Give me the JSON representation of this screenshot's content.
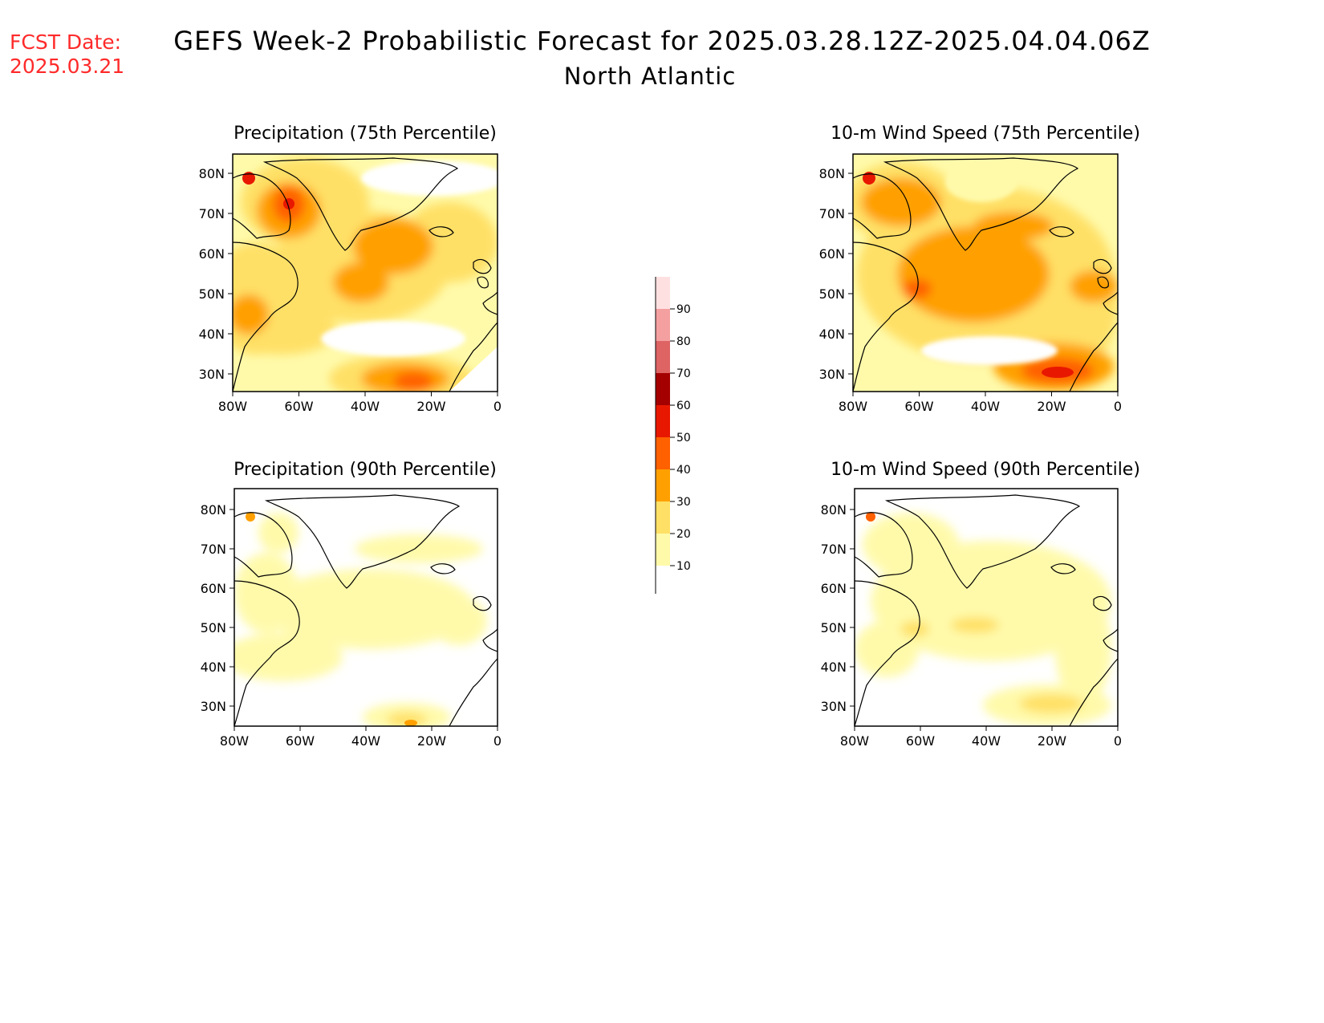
{
  "header": {
    "fcst_label": "FCST Date:",
    "fcst_date": "2025.03.21",
    "title": "GEFS Week-2 Probabilistic Forecast for 2025.03.28.12Z-2025.04.04.06Z",
    "subtitle": "North Atlantic"
  },
  "maps": {
    "lat_ticks": [
      "80N",
      "70N",
      "60N",
      "50N",
      "40N",
      "30N"
    ],
    "lon_ticks": [
      "80W",
      "60W",
      "40W",
      "20W",
      "0"
    ],
    "panels": [
      {
        "title": "Precipitation (75th Percentile)"
      },
      {
        "title": "10-m Wind Speed (75th Percentile)"
      },
      {
        "title": "Precipitation (90th Percentile)"
      },
      {
        "title": "10-m Wind Speed (90th Percentile)"
      }
    ]
  },
  "colorbar": {
    "levels": [
      "10",
      "20",
      "30",
      "40",
      "50",
      "60",
      "70",
      "80",
      "90"
    ],
    "colors": [
      "#fffaaa",
      "#ffe066",
      "#ffa000",
      "#ff6000",
      "#e81800",
      "#a50000",
      "#de6464",
      "#f4a0a0",
      "#ffe0e0"
    ]
  }
}
